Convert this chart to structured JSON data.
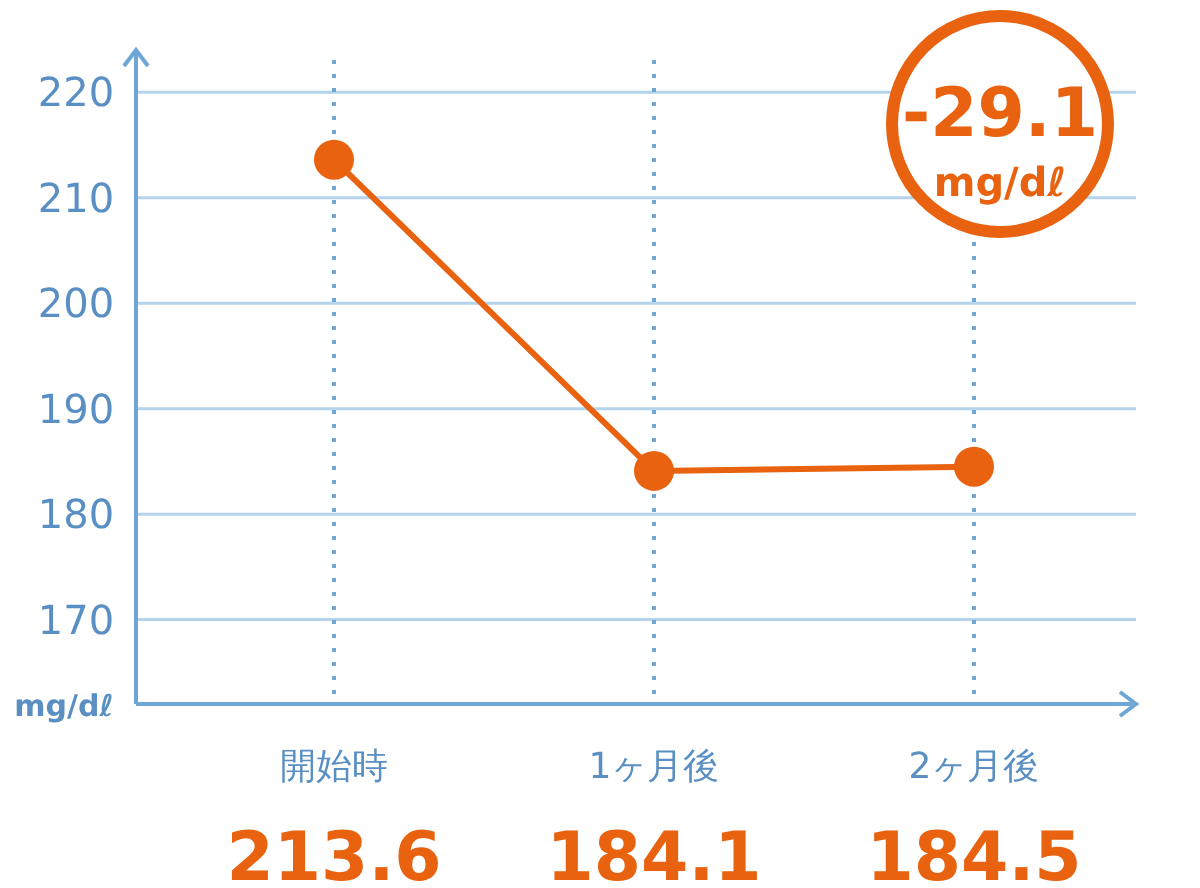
{
  "chart_data": {
    "type": "line",
    "ylabel": "mg/dℓ",
    "categories": [
      "開始時",
      "1ヶ月後",
      "2ヶ月後"
    ],
    "series": [
      {
        "color": "#e8620f",
        "values": [
          213.6,
          184.1,
          184.5
        ]
      }
    ],
    "ylim": [
      162,
      224
    ],
    "yticks": [
      170,
      180,
      190,
      200,
      210,
      220
    ],
    "grid": true,
    "marker": "circle",
    "line_style": "solid",
    "data_labels": true,
    "annotations": [
      "-29.1 mg/dℓ"
    ]
  }
}
